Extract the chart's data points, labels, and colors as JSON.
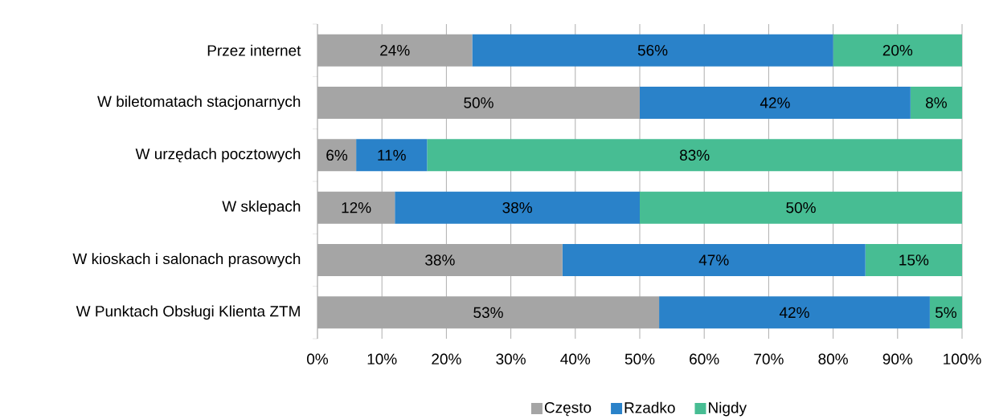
{
  "chart_data": {
    "type": "bar",
    "orientation": "horizontal",
    "stacked": true,
    "categories": [
      "Przez internet",
      "W biletomatach stacjonarnych",
      "W urzędach pocztowych",
      "W sklepach",
      "W kioskach i salonach prasowych",
      "W Punktach Obsługi Klienta ZTM"
    ],
    "series": [
      {
        "name": "Często",
        "color": "#a5a5a5",
        "values": [
          24,
          50,
          6,
          12,
          38,
          53
        ],
        "value_labels": [
          "24%",
          "50%",
          "6%",
          "12%",
          "38%",
          "53%"
        ]
      },
      {
        "name": "Rzadko",
        "color": "#2a82c9",
        "values": [
          56,
          42,
          11,
          38,
          47,
          42
        ],
        "value_labels": [
          "56%",
          "42%",
          "11%",
          "38%",
          "47%",
          "42%"
        ]
      },
      {
        "name": "Nigdy",
        "color": "#47bd93",
        "values": [
          20,
          8,
          83,
          50,
          15,
          5
        ],
        "value_labels": [
          "20%",
          "8%",
          "83%",
          "50%",
          "15%",
          "5%"
        ]
      }
    ],
    "xlim": [
      0,
      100
    ],
    "xticks": [
      {
        "value": 0,
        "label": "0%"
      },
      {
        "value": 10,
        "label": "10%"
      },
      {
        "value": 20,
        "label": "20%"
      },
      {
        "value": 30,
        "label": "30%"
      },
      {
        "value": 40,
        "label": "40%"
      },
      {
        "value": 50,
        "label": "50%"
      },
      {
        "value": 60,
        "label": "60%"
      },
      {
        "value": 70,
        "label": "70%"
      },
      {
        "value": 80,
        "label": "80%"
      },
      {
        "value": 90,
        "label": "90%"
      },
      {
        "value": 100,
        "label": "100%"
      }
    ],
    "grid": "x",
    "legend": "bottom"
  }
}
